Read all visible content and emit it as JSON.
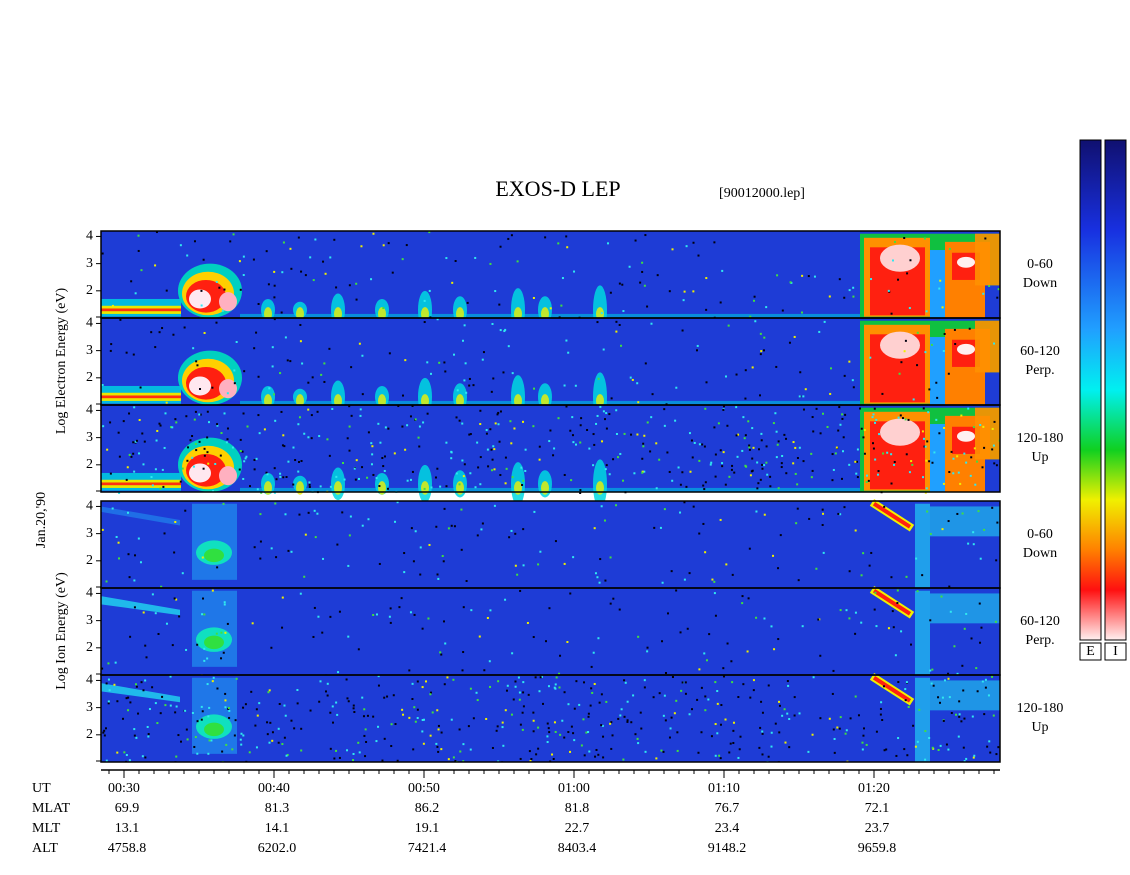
{
  "header": {
    "title": "EXOS-D LEP",
    "file": "[90012000.lep]"
  },
  "date": "Jan.20,'90",
  "electron": {
    "axis_label": "Log  Electron  Energy  (eV)",
    "panels": [
      {
        "range": "0-60",
        "direction": "Down"
      },
      {
        "range": "60-120",
        "direction": "Perp."
      },
      {
        "range": "120-180",
        "direction": "Up"
      }
    ]
  },
  "ion": {
    "axis_label": "Log  Ion  Energy  (eV)",
    "panels": [
      {
        "range": "0-60",
        "direction": "Down"
      },
      {
        "range": "60-120",
        "direction": "Perp."
      },
      {
        "range": "120-180",
        "direction": "Up"
      }
    ]
  },
  "energy_axis": {
    "range": [
      1,
      4.2
    ],
    "ticks": [
      2,
      3,
      4
    ]
  },
  "time_axis": {
    "label": "UT",
    "ticks": [
      "00:30",
      "00:40",
      "00:50",
      "01:00",
      "01:10",
      "01:20"
    ]
  },
  "orbit": [
    {
      "label": "MLAT",
      "values": [
        "69.9",
        "81.3",
        "86.2",
        "81.8",
        "76.7",
        "72.1"
      ]
    },
    {
      "label": "MLT",
      "values": [
        "13.1",
        "14.1",
        "19.1",
        "22.7",
        "23.4",
        "23.7"
      ]
    },
    {
      "label": "ALT",
      "values": [
        "4758.8",
        "6202.0",
        "7421.4",
        "8403.4",
        "9148.2",
        "9659.8"
      ]
    }
  ],
  "colorbars": [
    "E",
    "I"
  ]
}
